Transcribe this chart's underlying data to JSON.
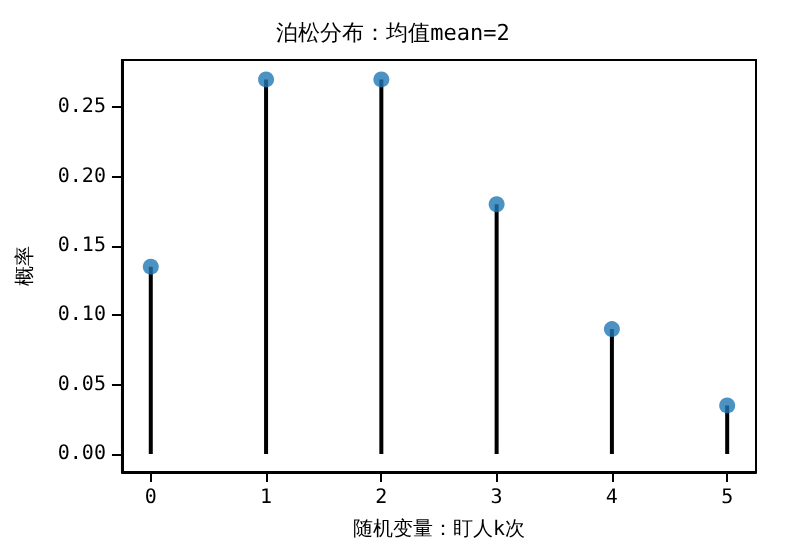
{
  "chart_data": {
    "type": "lollipop",
    "title": "泊松分布：均值mean=2",
    "xlabel": "随机变量：盯人k次",
    "ylabel": "概率",
    "x": [
      0,
      1,
      2,
      3,
      4,
      5
    ],
    "series": [
      {
        "color": "#1f77b4",
        "values": [
          0.135,
          0.27,
          0.27,
          0.18,
          0.09,
          0.035
        ]
      }
    ],
    "xlim": [
      -0.25,
      5.25
    ],
    "xticks": [
      0,
      1,
      2,
      3,
      4,
      5
    ],
    "ylim": [
      -0.013,
      0.284
    ],
    "yticks": [
      {
        "value": 0,
        "label": "0.00"
      },
      {
        "value": 0.05,
        "label": "0.05"
      },
      {
        "value": 0.1,
        "label": "0.10"
      },
      {
        "value": 0.15,
        "label": "0.15"
      },
      {
        "value": 0.2,
        "label": "0.20"
      },
      {
        "value": 0.25,
        "label": "0.25"
      }
    ],
    "marker": "circle"
  }
}
